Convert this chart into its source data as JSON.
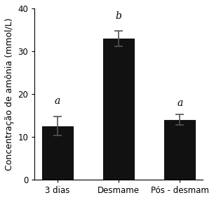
{
  "categories": [
    "3 dias",
    "Desmame",
    "Pós - desmam"
  ],
  "values": [
    12.5,
    33.0,
    14.0
  ],
  "errors": [
    2.2,
    1.8,
    1.2
  ],
  "bar_color": "#111111",
  "bar_width": 0.5,
  "ylim": [
    0,
    40
  ],
  "yticks": [
    0,
    10,
    20,
    30,
    40
  ],
  "ylabel": "Concentração de amônia (mmol/L)",
  "letter_labels": [
    "a",
    "b",
    "a"
  ],
  "letter_offsets": [
    2.5,
    2.2,
    1.5
  ],
  "background_color": "#ffffff",
  "bar_edge_color": "#111111",
  "error_color": "#555555",
  "ylabel_fontsize": 9,
  "tick_fontsize": 8.5,
  "letter_fontsize": 10
}
